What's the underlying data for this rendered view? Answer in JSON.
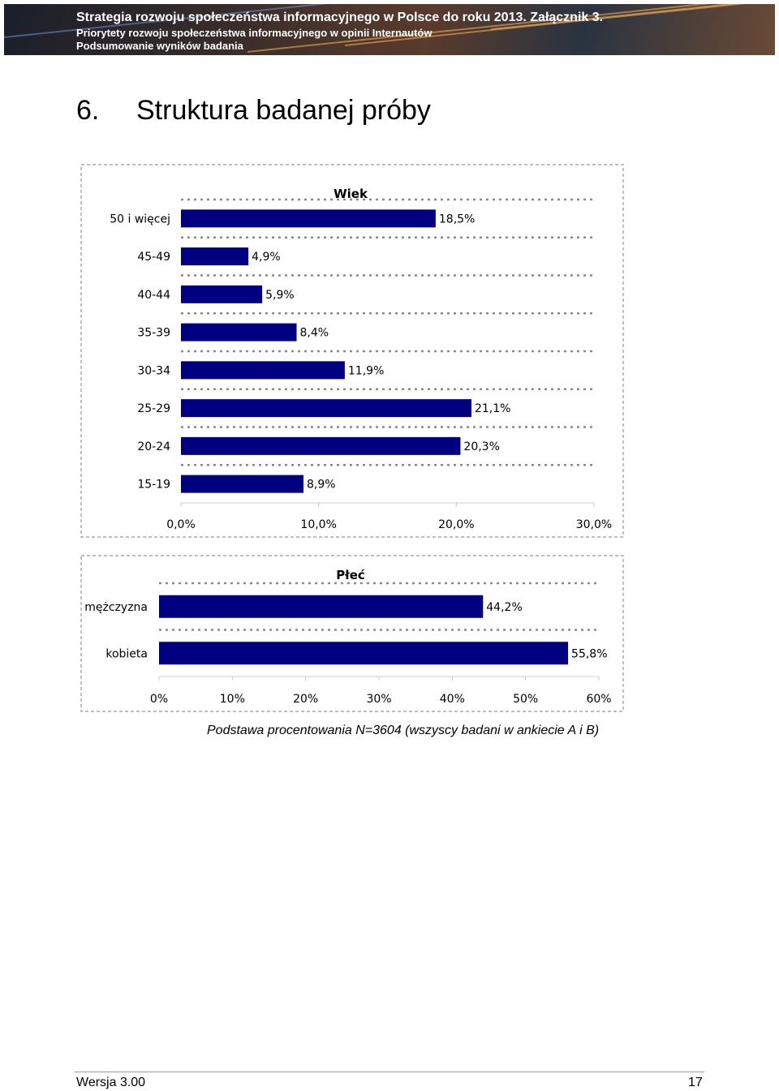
{
  "header": {
    "line1": "Strategia rozwoju społeczeństwa informacyjnego w Polsce do roku 2013. Załącznik 3.",
    "line2": "Priorytety rozwoju społeczeństwa informacyjnego w opinii Internautów",
    "line3": "Podsumowanie wyników badania"
  },
  "section": {
    "number": "6.",
    "title": "Struktura badanej próby"
  },
  "colors": {
    "bar": "#000080",
    "frame": "#aaaaaa",
    "grid": "#8a8a8a"
  },
  "chart_data": [
    {
      "type": "bar",
      "orientation": "horizontal",
      "title": "Wiek",
      "categories": [
        "50 i więcej",
        "45-49",
        "40-44",
        "35-39",
        "30-34",
        "25-29",
        "20-24",
        "15-19"
      ],
      "values": [
        18.5,
        4.9,
        5.9,
        8.4,
        11.9,
        21.1,
        20.3,
        8.9
      ],
      "value_labels": [
        "18,5%",
        "4,9%",
        "5,9%",
        "8,4%",
        "11,9%",
        "21,1%",
        "20,3%",
        "8,9%"
      ],
      "xlim": [
        0,
        30
      ],
      "xticks": [
        0,
        10,
        20,
        30
      ],
      "xtick_labels": [
        "0,0%",
        "10,0%",
        "20,0%",
        "30,0%"
      ],
      "xlabel": "",
      "ylabel": ""
    },
    {
      "type": "bar",
      "orientation": "horizontal",
      "title": "Płeć",
      "categories": [
        "mężczyzna",
        "kobieta"
      ],
      "values": [
        44.2,
        55.8
      ],
      "value_labels": [
        "44,2%",
        "55,8%"
      ],
      "xlim": [
        0,
        60
      ],
      "xticks": [
        0,
        10,
        20,
        30,
        40,
        50,
        60
      ],
      "xtick_labels": [
        "0%",
        "10%",
        "20%",
        "30%",
        "40%",
        "50%",
        "60%"
      ],
      "xlabel": "",
      "ylabel": ""
    }
  ],
  "footnote": "Podstawa procentowania N=3604 (wszyscy badani w ankiecie A i B)",
  "footer": {
    "version": "Wersja 3.00",
    "page": "17"
  }
}
